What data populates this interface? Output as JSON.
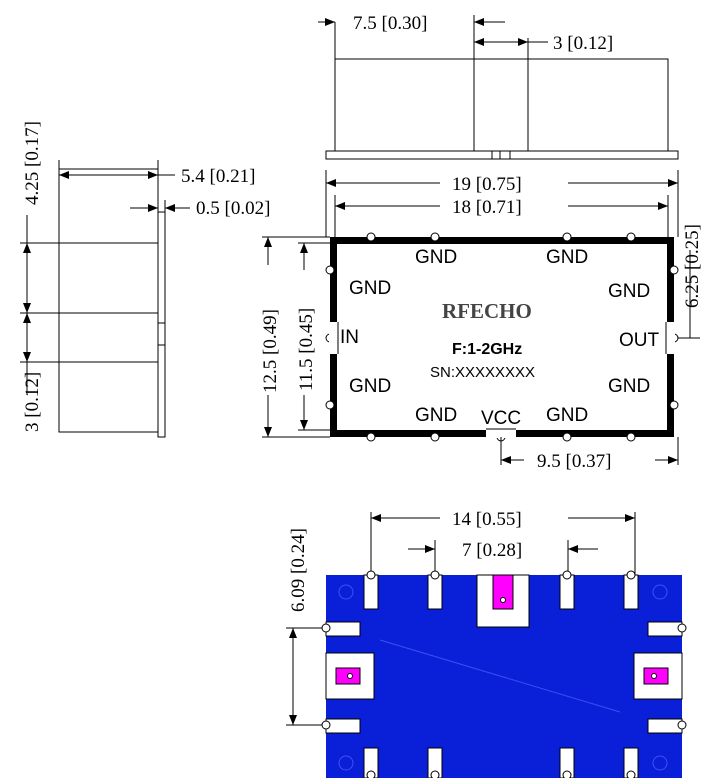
{
  "dimensions": {
    "top_width_a": "7.5 [0.30]",
    "top_width_b": "3 [0.12]",
    "side_height": "4.25 [0.17]",
    "side_width_a": "5.4 [0.21]",
    "side_width_b": "0.5 [0.02]",
    "side_bottom": "3 [0.12]",
    "overall_width": "19 [0.75]",
    "inner_width": "18 [0.71]",
    "right_pitch": "6.25 [0.25]",
    "overall_height": "12.5 [0.49]",
    "inner_height": "11.5 [0.45]",
    "bottom_pitch": "9.5 [0.37]",
    "pad_span": "14 [0.55]",
    "pad_pitch": "7 [0.28]",
    "pad_height": "6.09 [0.24]"
  },
  "module": {
    "brand": "RFECHO",
    "frequency": "F:1-2GHz",
    "serial": "SN:XXXXXXXX"
  },
  "pins": {
    "gnd_top_left": "GND",
    "gnd_top_right": "GND",
    "gnd_upper_left": "GND",
    "gnd_upper_right": "GND",
    "in": "IN",
    "out": "OUT",
    "gnd_lower_left": "GND",
    "gnd_lower_right": "GND",
    "gnd_bottom_left": "GND",
    "vcc": "VCC",
    "gnd_bottom_right": "GND"
  },
  "colors": {
    "pcb": "#0a1fd8",
    "pad": "#ff00ff",
    "outline": "#000000"
  }
}
